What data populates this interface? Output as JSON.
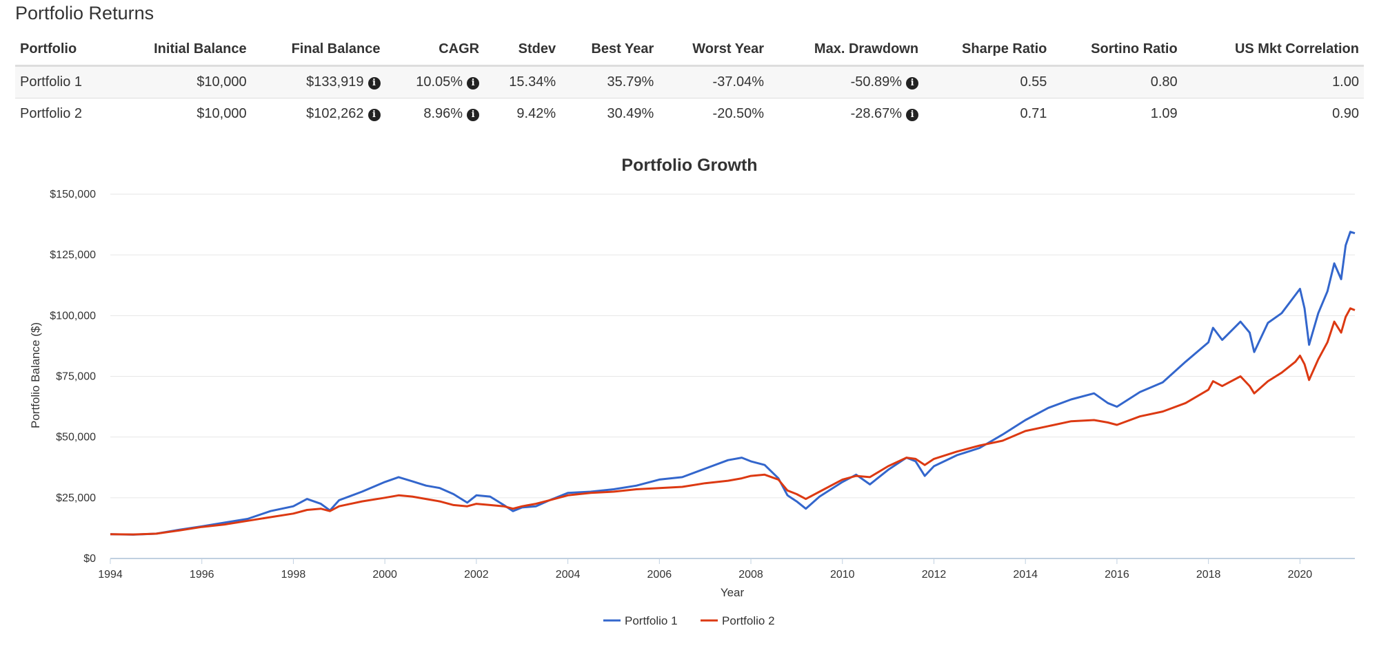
{
  "page": {
    "title": "Portfolio Returns"
  },
  "table": {
    "headers": [
      "Portfolio",
      "Initial Balance",
      "Final Balance",
      "CAGR",
      "Stdev",
      "Best Year",
      "Worst Year",
      "Max. Drawdown",
      "Sharpe Ratio",
      "Sortino Ratio",
      "US Mkt Correlation"
    ],
    "rows": [
      {
        "portfolio": "Portfolio 1",
        "initial_balance": "$10,000",
        "final_balance": "$133,919",
        "cagr": "10.05%",
        "stdev": "15.34%",
        "best_year": "35.79%",
        "worst_year": "-37.04%",
        "max_drawdown": "-50.89%",
        "sharpe_ratio": "0.55",
        "sortino_ratio": "0.80",
        "us_mkt_correlation": "1.00"
      },
      {
        "portfolio": "Portfolio 2",
        "initial_balance": "$10,000",
        "final_balance": "$102,262",
        "cagr": "8.96%",
        "stdev": "9.42%",
        "best_year": "30.49%",
        "worst_year": "-20.50%",
        "max_drawdown": "-28.67%",
        "sharpe_ratio": "0.71",
        "sortino_ratio": "1.09",
        "us_mkt_correlation": "0.90"
      }
    ],
    "info_icon": "info-circle-icon"
  },
  "chart_data": {
    "type": "line",
    "title": "Portfolio Growth",
    "xlabel": "Year",
    "ylabel": "Portfolio Balance ($)",
    "xlim": [
      1994,
      2021.2
    ],
    "ylim": [
      0,
      150000
    ],
    "x_ticks": [
      "1994",
      "1996",
      "1998",
      "2000",
      "2002",
      "2004",
      "2006",
      "2008",
      "2010",
      "2012",
      "2014",
      "2016",
      "2018",
      "2020"
    ],
    "y_ticks": [
      "$0",
      "$25,000",
      "$50,000",
      "$75,000",
      "$100,000",
      "$125,000",
      "$150,000"
    ],
    "grid": true,
    "legend_position": "bottom-center",
    "series": [
      {
        "name": "Portfolio 1",
        "color": "#3366cc",
        "points": [
          [
            1994.0,
            10000
          ],
          [
            1994.5,
            9800
          ],
          [
            1995.0,
            10200
          ],
          [
            1995.5,
            11800
          ],
          [
            1996.0,
            13200
          ],
          [
            1996.5,
            14800
          ],
          [
            1997.0,
            16300
          ],
          [
            1997.5,
            19500
          ],
          [
            1998.0,
            21500
          ],
          [
            1998.3,
            24500
          ],
          [
            1998.6,
            22500
          ],
          [
            1998.8,
            19800
          ],
          [
            1999.0,
            24000
          ],
          [
            1999.5,
            27500
          ],
          [
            2000.0,
            31500
          ],
          [
            2000.3,
            33500
          ],
          [
            2000.6,
            31800
          ],
          [
            2000.9,
            30000
          ],
          [
            2001.2,
            29000
          ],
          [
            2001.5,
            26500
          ],
          [
            2001.8,
            23000
          ],
          [
            2002.0,
            26000
          ],
          [
            2002.3,
            25500
          ],
          [
            2002.6,
            22000
          ],
          [
            2002.8,
            19500
          ],
          [
            2003.0,
            21000
          ],
          [
            2003.3,
            21500
          ],
          [
            2003.6,
            24000
          ],
          [
            2004.0,
            27000
          ],
          [
            2004.5,
            27500
          ],
          [
            2005.0,
            28500
          ],
          [
            2005.5,
            30000
          ],
          [
            2006.0,
            32500
          ],
          [
            2006.5,
            33500
          ],
          [
            2007.0,
            37000
          ],
          [
            2007.5,
            40500
          ],
          [
            2007.8,
            41500
          ],
          [
            2008.0,
            40000
          ],
          [
            2008.3,
            38500
          ],
          [
            2008.6,
            33000
          ],
          [
            2008.8,
            26000
          ],
          [
            2009.0,
            23500
          ],
          [
            2009.2,
            20500
          ],
          [
            2009.5,
            25500
          ],
          [
            2010.0,
            31500
          ],
          [
            2010.3,
            34500
          ],
          [
            2010.6,
            30500
          ],
          [
            2011.0,
            36500
          ],
          [
            2011.4,
            41500
          ],
          [
            2011.6,
            40000
          ],
          [
            2011.8,
            34000
          ],
          [
            2012.0,
            38000
          ],
          [
            2012.5,
            42500
          ],
          [
            2013.0,
            45500
          ],
          [
            2013.5,
            51000
          ],
          [
            2014.0,
            57000
          ],
          [
            2014.5,
            62000
          ],
          [
            2015.0,
            65500
          ],
          [
            2015.5,
            68000
          ],
          [
            2015.8,
            64000
          ],
          [
            2016.0,
            62500
          ],
          [
            2016.5,
            68500
          ],
          [
            2017.0,
            72500
          ],
          [
            2017.5,
            81000
          ],
          [
            2018.0,
            89000
          ],
          [
            2018.1,
            95000
          ],
          [
            2018.3,
            90000
          ],
          [
            2018.7,
            97500
          ],
          [
            2018.9,
            93000
          ],
          [
            2019.0,
            85000
          ],
          [
            2019.3,
            97000
          ],
          [
            2019.6,
            101000
          ],
          [
            2019.9,
            108500
          ],
          [
            2020.0,
            111000
          ],
          [
            2020.1,
            103000
          ],
          [
            2020.2,
            88000
          ],
          [
            2020.4,
            101000
          ],
          [
            2020.6,
            110000
          ],
          [
            2020.75,
            121500
          ],
          [
            2020.9,
            115000
          ],
          [
            2021.0,
            129000
          ],
          [
            2021.1,
            134500
          ],
          [
            2021.2,
            133919
          ]
        ]
      },
      {
        "name": "Portfolio 2",
        "color": "#dc3912",
        "points": [
          [
            1994.0,
            10000
          ],
          [
            1994.5,
            9900
          ],
          [
            1995.0,
            10200
          ],
          [
            1995.5,
            11500
          ],
          [
            1996.0,
            13000
          ],
          [
            1996.5,
            14000
          ],
          [
            1997.0,
            15500
          ],
          [
            1997.5,
            17000
          ],
          [
            1998.0,
            18500
          ],
          [
            1998.3,
            20000
          ],
          [
            1998.6,
            20500
          ],
          [
            1998.8,
            19500
          ],
          [
            1999.0,
            21500
          ],
          [
            1999.5,
            23500
          ],
          [
            2000.0,
            25000
          ],
          [
            2000.3,
            26000
          ],
          [
            2000.6,
            25500
          ],
          [
            2000.9,
            24500
          ],
          [
            2001.2,
            23500
          ],
          [
            2001.5,
            22000
          ],
          [
            2001.8,
            21500
          ],
          [
            2002.0,
            22500
          ],
          [
            2002.3,
            22000
          ],
          [
            2002.6,
            21500
          ],
          [
            2002.8,
            20500
          ],
          [
            2003.0,
            21500
          ],
          [
            2003.3,
            22500
          ],
          [
            2003.6,
            24000
          ],
          [
            2004.0,
            26000
          ],
          [
            2004.5,
            27000
          ],
          [
            2005.0,
            27500
          ],
          [
            2005.5,
            28500
          ],
          [
            2006.0,
            29000
          ],
          [
            2006.5,
            29500
          ],
          [
            2007.0,
            31000
          ],
          [
            2007.5,
            32000
          ],
          [
            2007.8,
            33000
          ],
          [
            2008.0,
            34000
          ],
          [
            2008.3,
            34500
          ],
          [
            2008.6,
            32500
          ],
          [
            2008.8,
            28000
          ],
          [
            2009.0,
            26500
          ],
          [
            2009.2,
            24500
          ],
          [
            2009.5,
            27500
          ],
          [
            2010.0,
            32500
          ],
          [
            2010.3,
            34000
          ],
          [
            2010.6,
            33500
          ],
          [
            2011.0,
            38000
          ],
          [
            2011.4,
            41500
          ],
          [
            2011.6,
            41000
          ],
          [
            2011.8,
            38500
          ],
          [
            2012.0,
            41000
          ],
          [
            2012.5,
            44000
          ],
          [
            2013.0,
            46500
          ],
          [
            2013.5,
            48500
          ],
          [
            2014.0,
            52500
          ],
          [
            2014.5,
            54500
          ],
          [
            2015.0,
            56500
          ],
          [
            2015.5,
            57000
          ],
          [
            2015.8,
            56000
          ],
          [
            2016.0,
            55000
          ],
          [
            2016.5,
            58500
          ],
          [
            2017.0,
            60500
          ],
          [
            2017.5,
            64000
          ],
          [
            2018.0,
            69500
          ],
          [
            2018.1,
            73000
          ],
          [
            2018.3,
            71000
          ],
          [
            2018.7,
            75000
          ],
          [
            2018.9,
            71000
          ],
          [
            2019.0,
            68000
          ],
          [
            2019.3,
            73000
          ],
          [
            2019.6,
            76500
          ],
          [
            2019.9,
            81000
          ],
          [
            2020.0,
            83500
          ],
          [
            2020.1,
            80000
          ],
          [
            2020.2,
            73500
          ],
          [
            2020.4,
            82000
          ],
          [
            2020.6,
            89000
          ],
          [
            2020.75,
            97500
          ],
          [
            2020.9,
            93000
          ],
          [
            2021.0,
            99500
          ],
          [
            2021.1,
            103000
          ],
          [
            2021.2,
            102262
          ]
        ]
      }
    ]
  }
}
